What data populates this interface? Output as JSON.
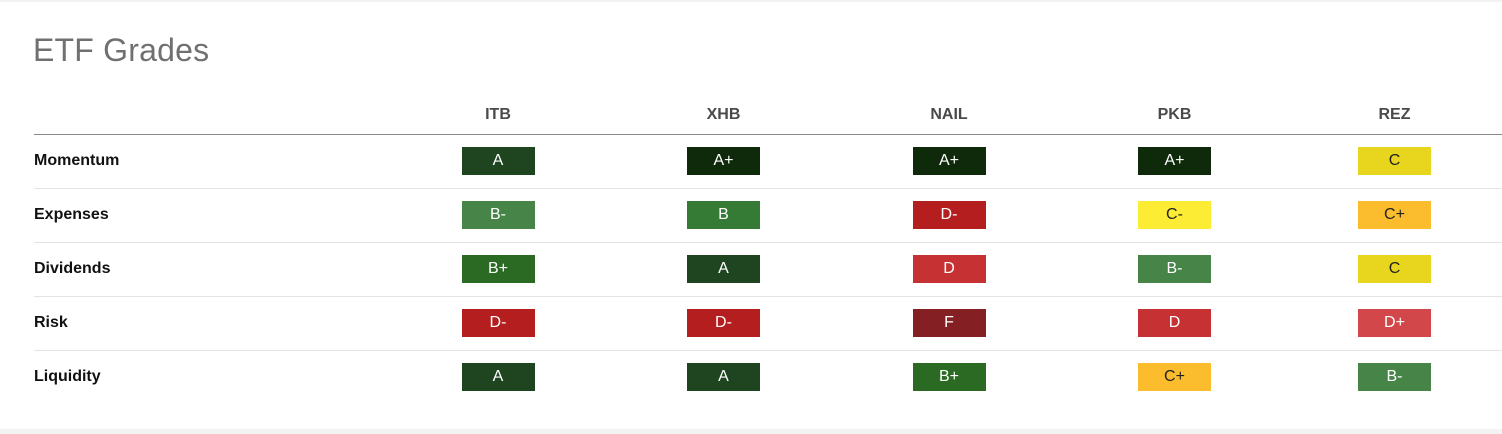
{
  "title": "ETF Grades",
  "columns": [
    "ITB",
    "XHB",
    "NAIL",
    "PKB",
    "REZ"
  ],
  "rows": [
    {
      "label": "Momentum",
      "grades": [
        "A",
        "A+",
        "A+",
        "A+",
        "C"
      ]
    },
    {
      "label": "Expenses",
      "grades": [
        "B-",
        "B",
        "D-",
        "C-",
        "C+"
      ]
    },
    {
      "label": "Dividends",
      "grades": [
        "B+",
        "A",
        "D",
        "B-",
        "C"
      ]
    },
    {
      "label": "Risk",
      "grades": [
        "D-",
        "D-",
        "F",
        "D",
        "D+"
      ]
    },
    {
      "label": "Liquidity",
      "grades": [
        "A",
        "A",
        "B+",
        "C+",
        "B-"
      ]
    }
  ],
  "grade_colors": {
    "A+": "#0f2a0b",
    "A": "#1e4520",
    "B+": "#2a6a22",
    "B": "#357a35",
    "B-": "#468447",
    "C+": "#fbbd2e",
    "C": "#e8d51d",
    "C-": "#fdec34",
    "D+": "#d2474a",
    "D": "#c63233",
    "D-": "#b51e1f",
    "F": "#842023"
  }
}
